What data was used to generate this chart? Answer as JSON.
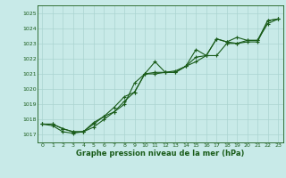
{
  "title": "Graphe pression niveau de la mer (hPa)",
  "bg_color": "#c8eae8",
  "plot_bg_color": "#c8eae8",
  "grid_color": "#aad4d0",
  "line_color": "#1a5c1a",
  "xlim": [
    -0.5,
    23.5
  ],
  "ylim": [
    1016.5,
    1025.5
  ],
  "yticks": [
    1017,
    1018,
    1019,
    1020,
    1021,
    1022,
    1023,
    1024,
    1025
  ],
  "xticks": [
    0,
    1,
    2,
    3,
    4,
    5,
    6,
    7,
    8,
    9,
    10,
    11,
    12,
    13,
    14,
    15,
    16,
    17,
    18,
    19,
    20,
    21,
    22,
    23
  ],
  "series": [
    [
      1017.7,
      1017.7,
      1017.4,
      1017.2,
      1017.2,
      1017.5,
      1018.0,
      1018.5,
      1019.0,
      1020.4,
      1021.0,
      1021.8,
      1021.1,
      1021.1,
      1021.5,
      1022.1,
      1022.2,
      1022.2,
      1023.0,
      1023.0,
      1023.1,
      1023.1,
      1024.5,
      1024.6
    ],
    [
      1017.7,
      1017.7,
      1017.4,
      1017.2,
      1017.2,
      1017.7,
      1018.2,
      1018.5,
      1019.2,
      1019.8,
      1021.0,
      1021.1,
      1021.1,
      1021.2,
      1021.5,
      1021.8,
      1022.2,
      1023.3,
      1023.1,
      1023.4,
      1023.2,
      1023.2,
      1024.5,
      1024.6
    ],
    [
      1017.7,
      1017.6,
      1017.2,
      1017.1,
      1017.2,
      1017.8,
      1018.2,
      1018.8,
      1019.5,
      1019.8,
      1021.0,
      1021.0,
      1021.1,
      1021.1,
      1021.5,
      1022.6,
      1022.2,
      1023.3,
      1023.1,
      1023.0,
      1023.2,
      1023.2,
      1024.3,
      1024.6
    ]
  ],
  "title_fontsize": 6.0,
  "tick_fontsize": 4.5,
  "linewidth": 0.8,
  "markersize": 2.5,
  "markeredgewidth": 0.8
}
